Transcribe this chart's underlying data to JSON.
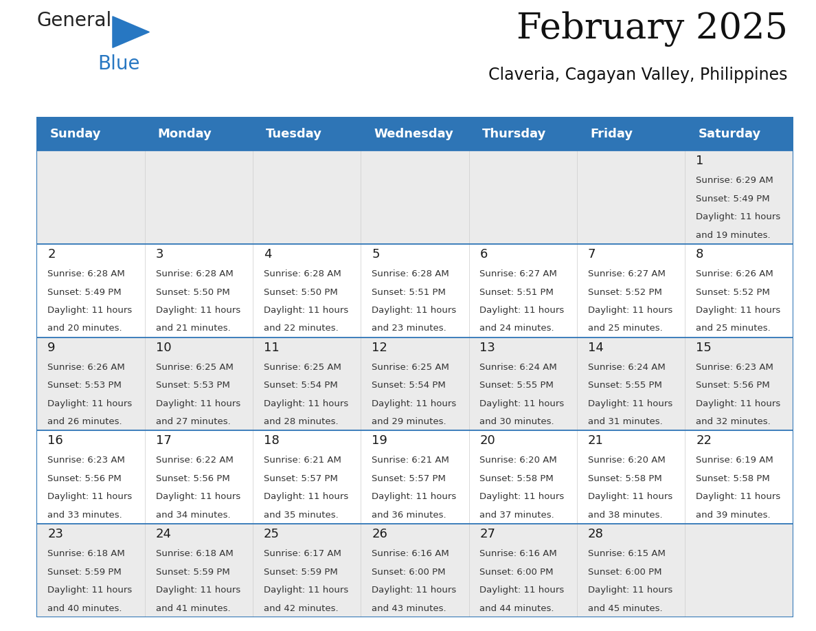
{
  "title": "February 2025",
  "subtitle": "Claveria, Cagayan Valley, Philippines",
  "header_color": "#2E75B6",
  "header_text_color": "#FFFFFF",
  "row_band_color": "#EBEBEB",
  "row_color": "#FFFFFF",
  "border_color": "#2E75B6",
  "day_names": [
    "Sunday",
    "Monday",
    "Tuesday",
    "Wednesday",
    "Thursday",
    "Friday",
    "Saturday"
  ],
  "days": [
    {
      "day": 1,
      "col": 6,
      "row": 0,
      "sunrise": "6:29 AM",
      "sunset": "5:49 PM",
      "daylight": "11 hours and 19 minutes."
    },
    {
      "day": 2,
      "col": 0,
      "row": 1,
      "sunrise": "6:28 AM",
      "sunset": "5:49 PM",
      "daylight": "11 hours and 20 minutes."
    },
    {
      "day": 3,
      "col": 1,
      "row": 1,
      "sunrise": "6:28 AM",
      "sunset": "5:50 PM",
      "daylight": "11 hours and 21 minutes."
    },
    {
      "day": 4,
      "col": 2,
      "row": 1,
      "sunrise": "6:28 AM",
      "sunset": "5:50 PM",
      "daylight": "11 hours and 22 minutes."
    },
    {
      "day": 5,
      "col": 3,
      "row": 1,
      "sunrise": "6:28 AM",
      "sunset": "5:51 PM",
      "daylight": "11 hours and 23 minutes."
    },
    {
      "day": 6,
      "col": 4,
      "row": 1,
      "sunrise": "6:27 AM",
      "sunset": "5:51 PM",
      "daylight": "11 hours and 24 minutes."
    },
    {
      "day": 7,
      "col": 5,
      "row": 1,
      "sunrise": "6:27 AM",
      "sunset": "5:52 PM",
      "daylight": "11 hours and 25 minutes."
    },
    {
      "day": 8,
      "col": 6,
      "row": 1,
      "sunrise": "6:26 AM",
      "sunset": "5:52 PM",
      "daylight": "11 hours and 25 minutes."
    },
    {
      "day": 9,
      "col": 0,
      "row": 2,
      "sunrise": "6:26 AM",
      "sunset": "5:53 PM",
      "daylight": "11 hours and 26 minutes."
    },
    {
      "day": 10,
      "col": 1,
      "row": 2,
      "sunrise": "6:25 AM",
      "sunset": "5:53 PM",
      "daylight": "11 hours and 27 minutes."
    },
    {
      "day": 11,
      "col": 2,
      "row": 2,
      "sunrise": "6:25 AM",
      "sunset": "5:54 PM",
      "daylight": "11 hours and 28 minutes."
    },
    {
      "day": 12,
      "col": 3,
      "row": 2,
      "sunrise": "6:25 AM",
      "sunset": "5:54 PM",
      "daylight": "11 hours and 29 minutes."
    },
    {
      "day": 13,
      "col": 4,
      "row": 2,
      "sunrise": "6:24 AM",
      "sunset": "5:55 PM",
      "daylight": "11 hours and 30 minutes."
    },
    {
      "day": 14,
      "col": 5,
      "row": 2,
      "sunrise": "6:24 AM",
      "sunset": "5:55 PM",
      "daylight": "11 hours and 31 minutes."
    },
    {
      "day": 15,
      "col": 6,
      "row": 2,
      "sunrise": "6:23 AM",
      "sunset": "5:56 PM",
      "daylight": "11 hours and 32 minutes."
    },
    {
      "day": 16,
      "col": 0,
      "row": 3,
      "sunrise": "6:23 AM",
      "sunset": "5:56 PM",
      "daylight": "11 hours and 33 minutes."
    },
    {
      "day": 17,
      "col": 1,
      "row": 3,
      "sunrise": "6:22 AM",
      "sunset": "5:56 PM",
      "daylight": "11 hours and 34 minutes."
    },
    {
      "day": 18,
      "col": 2,
      "row": 3,
      "sunrise": "6:21 AM",
      "sunset": "5:57 PM",
      "daylight": "11 hours and 35 minutes."
    },
    {
      "day": 19,
      "col": 3,
      "row": 3,
      "sunrise": "6:21 AM",
      "sunset": "5:57 PM",
      "daylight": "11 hours and 36 minutes."
    },
    {
      "day": 20,
      "col": 4,
      "row": 3,
      "sunrise": "6:20 AM",
      "sunset": "5:58 PM",
      "daylight": "11 hours and 37 minutes."
    },
    {
      "day": 21,
      "col": 5,
      "row": 3,
      "sunrise": "6:20 AM",
      "sunset": "5:58 PM",
      "daylight": "11 hours and 38 minutes."
    },
    {
      "day": 22,
      "col": 6,
      "row": 3,
      "sunrise": "6:19 AM",
      "sunset": "5:58 PM",
      "daylight": "11 hours and 39 minutes."
    },
    {
      "day": 23,
      "col": 0,
      "row": 4,
      "sunrise": "6:18 AM",
      "sunset": "5:59 PM",
      "daylight": "11 hours and 40 minutes."
    },
    {
      "day": 24,
      "col": 1,
      "row": 4,
      "sunrise": "6:18 AM",
      "sunset": "5:59 PM",
      "daylight": "11 hours and 41 minutes."
    },
    {
      "day": 25,
      "col": 2,
      "row": 4,
      "sunrise": "6:17 AM",
      "sunset": "5:59 PM",
      "daylight": "11 hours and 42 minutes."
    },
    {
      "day": 26,
      "col": 3,
      "row": 4,
      "sunrise": "6:16 AM",
      "sunset": "6:00 PM",
      "daylight": "11 hours and 43 minutes."
    },
    {
      "day": 27,
      "col": 4,
      "row": 4,
      "sunrise": "6:16 AM",
      "sunset": "6:00 PM",
      "daylight": "11 hours and 44 minutes."
    },
    {
      "day": 28,
      "col": 5,
      "row": 4,
      "sunrise": "6:15 AM",
      "sunset": "6:00 PM",
      "daylight": "11 hours and 45 minutes."
    }
  ],
  "num_rows": 5,
  "num_cols": 7,
  "logo_general_color": "#222222",
  "logo_blue_color": "#2777C2",
  "title_font_size": 38,
  "subtitle_font_size": 17,
  "header_font_size": 13,
  "day_num_font_size": 13,
  "cell_text_font_size": 9.5
}
